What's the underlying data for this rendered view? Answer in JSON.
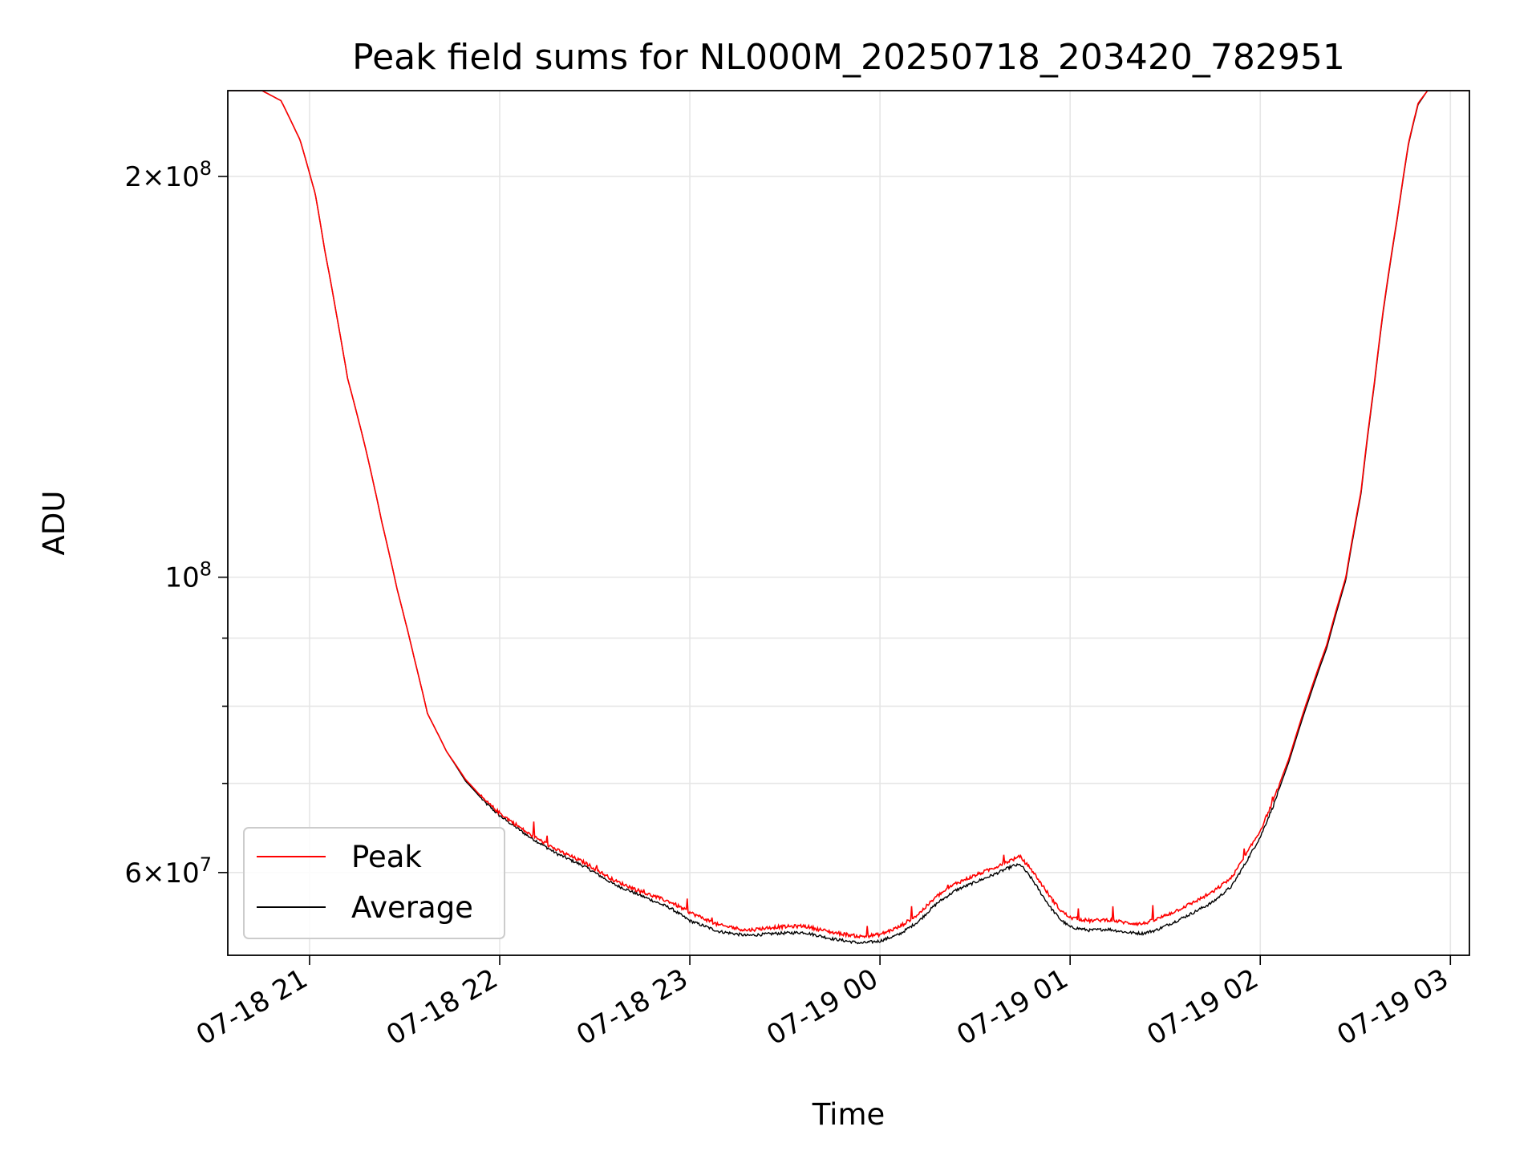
{
  "chart_data": {
    "type": "line",
    "title": "Peak field sums for NL000M_20250718_203420_782951",
    "xlabel": "Time",
    "ylabel": "ADU",
    "x_unit": "hours since 2025-07-18 00:00 (axis shows timestamps)",
    "xlim": [
      20.57,
      27.1
    ],
    "ylim": [
      52000000,
      232000000
    ],
    "yscale": "log",
    "grid": true,
    "legend_placement": "lower-left",
    "x_ticks": [
      {
        "value": 21,
        "label": "07-18 21"
      },
      {
        "value": 22,
        "label": "07-18 22"
      },
      {
        "value": 23,
        "label": "07-18 23"
      },
      {
        "value": 24,
        "label": "07-19 00"
      },
      {
        "value": 25,
        "label": "07-19 01"
      },
      {
        "value": 26,
        "label": "07-19 02"
      },
      {
        "value": 27,
        "label": "07-19 03"
      }
    ],
    "y_major_ticks": [
      {
        "value": 60000000,
        "mantissa": "6",
        "exponent": "7"
      },
      {
        "value": 100000000,
        "mantissa": "",
        "exponent": "8"
      },
      {
        "value": 200000000,
        "mantissa": "2",
        "exponent": "8"
      }
    ],
    "y_minor_ticks": [
      70000000,
      80000000,
      90000000
    ],
    "series": [
      {
        "name": "Peak",
        "color": "#ff0000",
        "x": [
          20.57,
          20.75,
          20.85,
          20.95,
          21.03,
          21.08,
          21.14,
          21.2,
          21.3,
          21.38,
          21.46,
          21.55,
          21.62,
          21.72,
          21.82,
          21.92,
          22.0,
          22.15,
          22.3,
          22.45,
          22.6,
          22.75,
          22.9,
          23.0,
          23.15,
          23.3,
          23.45,
          23.6,
          23.75,
          23.9,
          24.0,
          24.1,
          24.2,
          24.3,
          24.4,
          24.5,
          24.6,
          24.7,
          24.74,
          24.8,
          24.85,
          24.9,
          24.95,
          25.0,
          25.1,
          25.2,
          25.3,
          25.38,
          25.45,
          25.55,
          25.65,
          25.75,
          25.85,
          25.92,
          26.0,
          26.07,
          26.15,
          26.25,
          26.35,
          26.45,
          26.53,
          26.6,
          26.65,
          26.72,
          26.78,
          26.83,
          26.88,
          27.1
        ],
        "y": [
          232000000,
          232000000,
          228000000,
          213000000,
          194000000,
          176000000,
          158000000,
          141000000,
          124000000,
          110000000,
          98000000,
          87000000,
          79000000,
          74000000,
          70500000,
          68000000,
          66500000,
          64200000,
          62400000,
          61000000,
          59200000,
          58000000,
          57000000,
          56000000,
          54800000,
          54300000,
          54600000,
          54700000,
          54100000,
          53700000,
          53900000,
          54600000,
          55800000,
          57600000,
          58900000,
          59700000,
          60500000,
          61400000,
          61600000,
          60200000,
          58800000,
          57400000,
          56200000,
          55500000,
          55200000,
          55300000,
          55000000,
          54900000,
          55300000,
          56100000,
          57000000,
          58000000,
          59500000,
          61700000,
          64500000,
          68000000,
          73000000,
          81000000,
          89000000,
          100000000,
          116000000,
          140000000,
          160000000,
          186000000,
          212000000,
          227000000,
          232000000,
          232000000
        ]
      },
      {
        "name": "Average",
        "color": "#000000",
        "x": [
          20.57,
          20.75,
          20.85,
          20.95,
          21.03,
          21.08,
          21.14,
          21.2,
          21.3,
          21.38,
          21.46,
          21.55,
          21.62,
          21.72,
          21.82,
          21.92,
          22.0,
          22.15,
          22.3,
          22.45,
          22.6,
          22.75,
          22.9,
          23.0,
          23.15,
          23.3,
          23.45,
          23.6,
          23.75,
          23.9,
          24.0,
          24.1,
          24.2,
          24.3,
          24.4,
          24.5,
          24.6,
          24.7,
          24.74,
          24.8,
          24.85,
          24.9,
          24.95,
          25.0,
          25.1,
          25.2,
          25.3,
          25.38,
          25.45,
          25.55,
          25.65,
          25.75,
          25.85,
          25.92,
          26.0,
          26.07,
          26.15,
          26.25,
          26.35,
          26.45,
          26.53,
          26.6,
          26.65,
          26.72,
          26.78,
          26.83,
          26.88,
          27.1
        ],
        "y": [
          232000000,
          232000000,
          228000000,
          213000000,
          194000000,
          176000000,
          158000000,
          141000000,
          124000000,
          110000000,
          98000000,
          87000000,
          79000000,
          74000000,
          70300000,
          67800000,
          66200000,
          63900000,
          62000000,
          60600000,
          58800000,
          57600000,
          56400000,
          55200000,
          54200000,
          53800000,
          54000000,
          54100000,
          53500000,
          53100000,
          53300000,
          53900000,
          55100000,
          56900000,
          58200000,
          59000000,
          59800000,
          60700000,
          60800000,
          59300000,
          57800000,
          56400000,
          55300000,
          54600000,
          54300000,
          54400000,
          54100000,
          54000000,
          54300000,
          55100000,
          56000000,
          57000000,
          58600000,
          60900000,
          63800000,
          67400000,
          72600000,
          80500000,
          88500000,
          99500000,
          115500000,
          139500000,
          159500000,
          185500000,
          211500000,
          226500000,
          232000000,
          232000000
        ]
      }
    ]
  }
}
